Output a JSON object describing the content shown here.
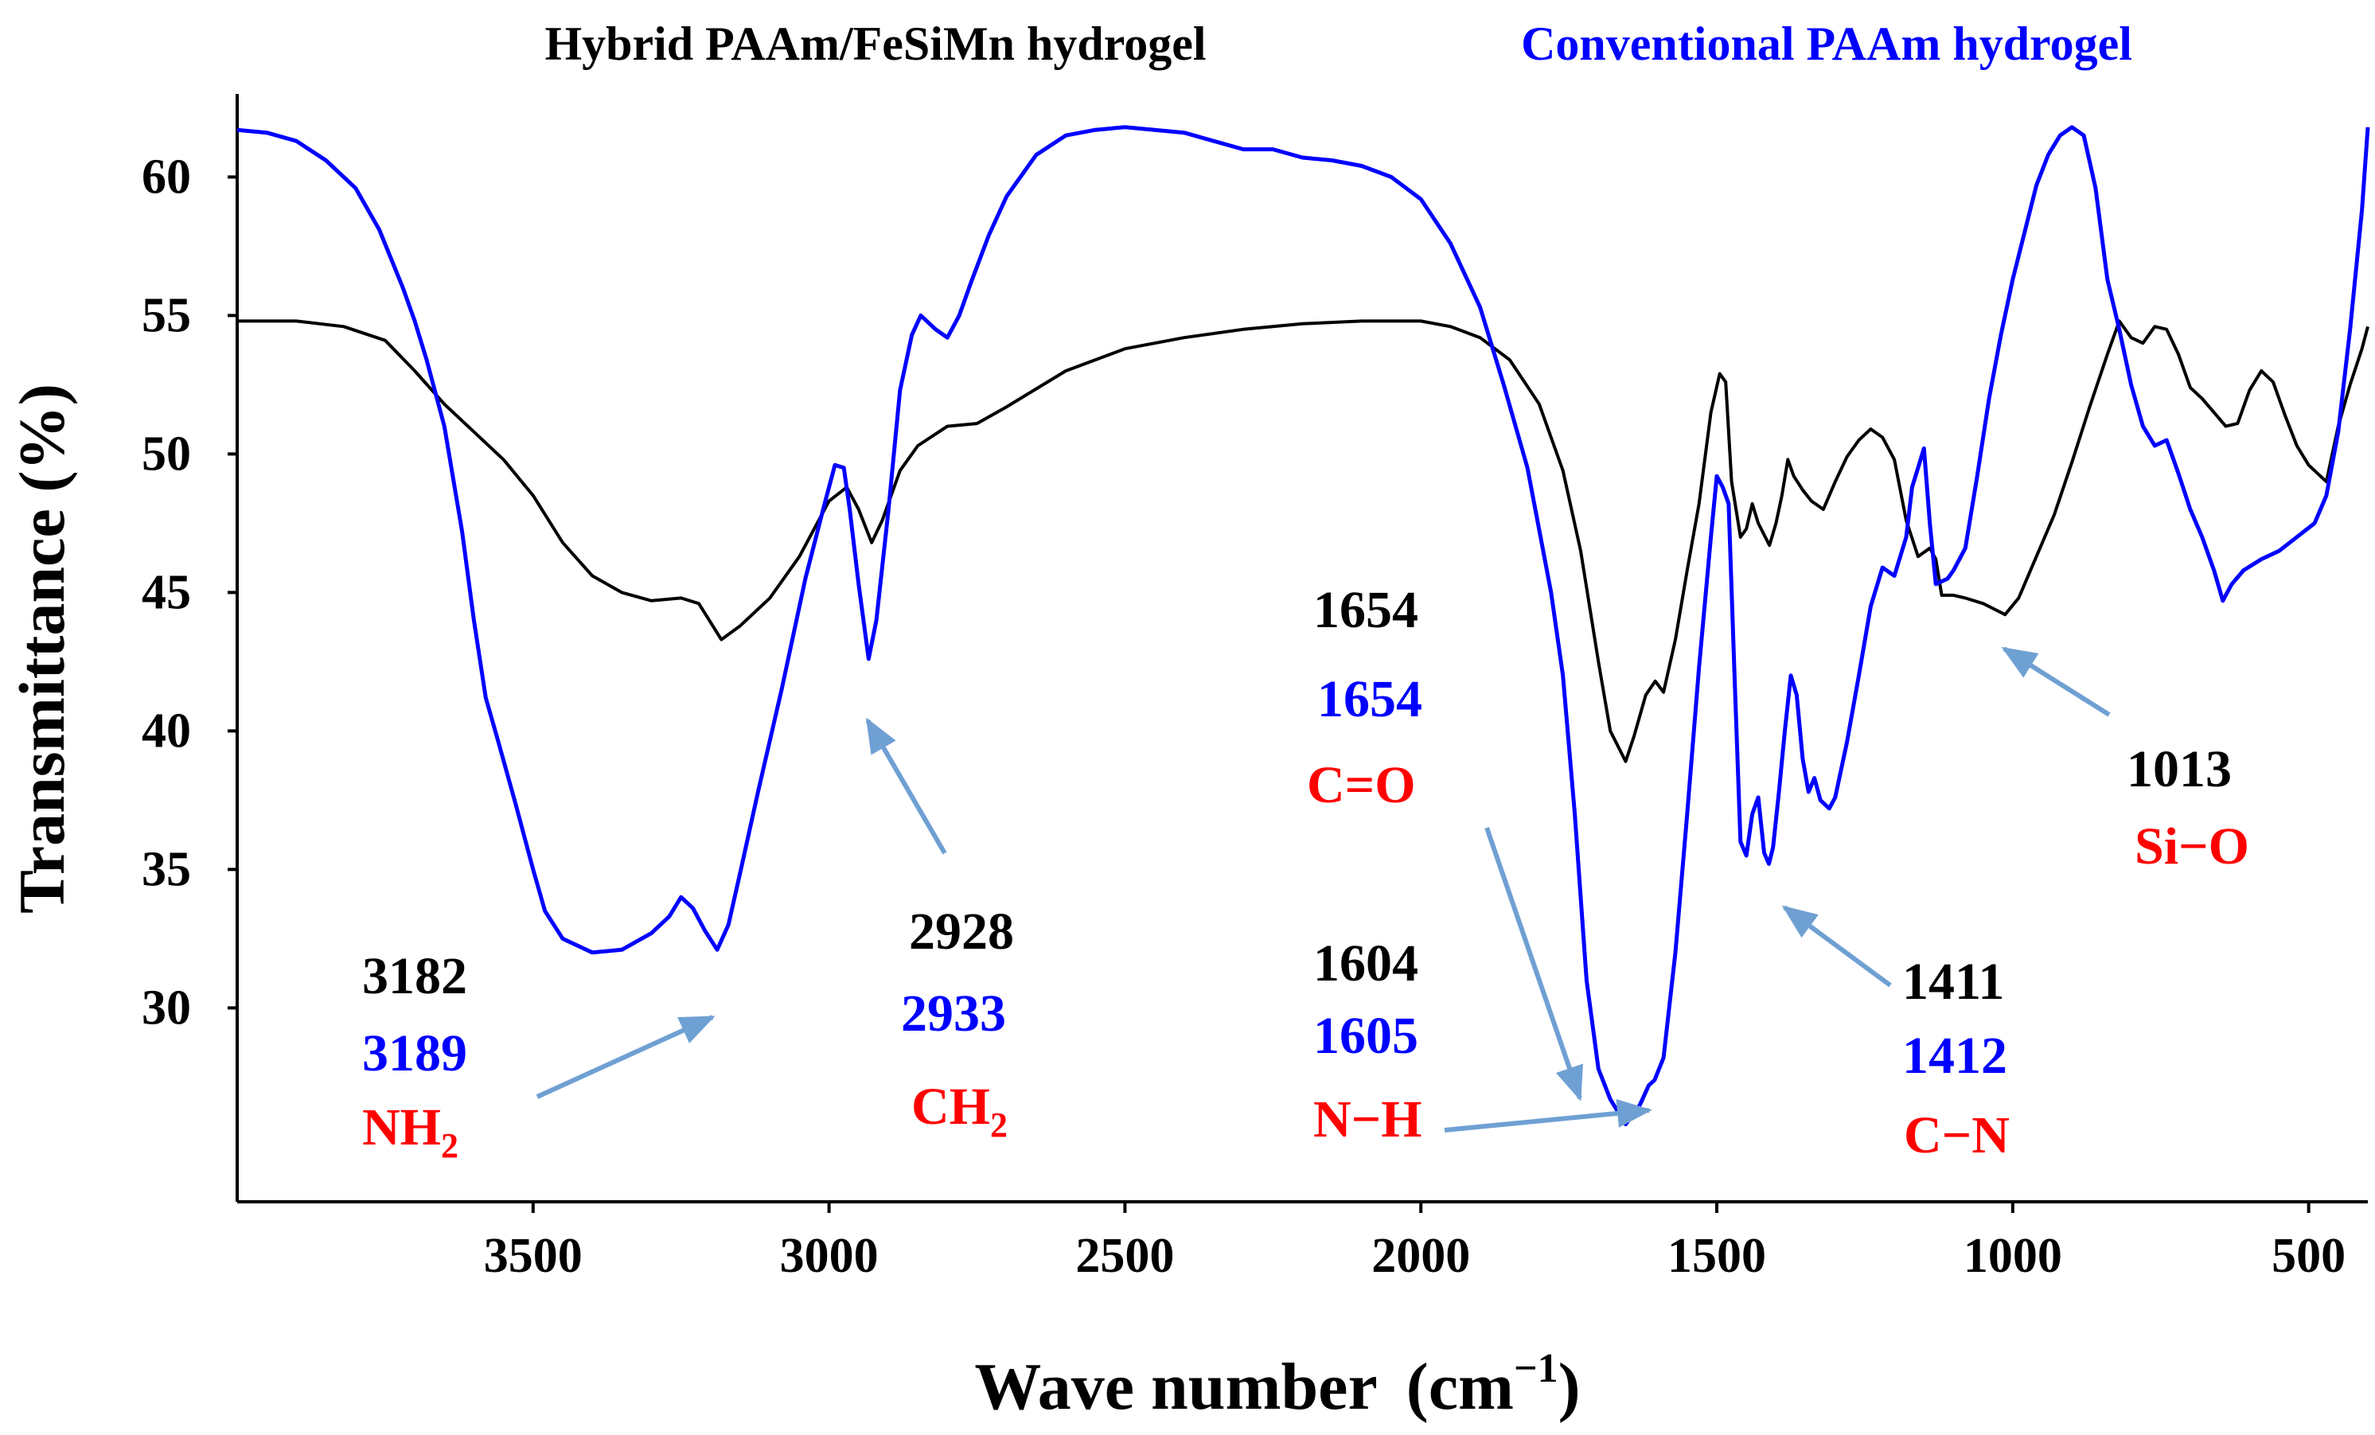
{
  "chart_data": {
    "type": "line",
    "title": "",
    "xlabel": "Wave number",
    "xlabel_unit": "(cm",
    "xlabel_unit_exp": "−1",
    "xlabel_unit_close": ")",
    "ylabel": "Transmittance  (%)",
    "x_reversed": true,
    "xlim": [
      4000,
      400
    ],
    "ylim": [
      23,
      63
    ],
    "x_ticks": [
      3500,
      3000,
      2500,
      2000,
      1500,
      1000,
      500
    ],
    "x_tick_labels": [
      "3500",
      "3000",
      "2500",
      "2000",
      "1500",
      "1000",
      "500"
    ],
    "y_ticks": [
      30,
      35,
      40,
      45,
      50,
      55,
      60
    ],
    "y_tick_labels": [
      "30",
      "35",
      "40",
      "45",
      "50",
      "55",
      "60"
    ],
    "series": [
      {
        "name": "Hybrid PAAm/FeSiMn hydrogel",
        "color": "#000000",
        "points": [
          [
            4000,
            54.8
          ],
          [
            3900,
            54.8
          ],
          [
            3820,
            54.6
          ],
          [
            3750,
            54.1
          ],
          [
            3700,
            53
          ],
          [
            3650,
            51.8
          ],
          [
            3600,
            50.8
          ],
          [
            3550,
            49.8
          ],
          [
            3500,
            48.5
          ],
          [
            3450,
            46.8
          ],
          [
            3400,
            45.6
          ],
          [
            3350,
            45
          ],
          [
            3300,
            44.7
          ],
          [
            3250,
            44.8
          ],
          [
            3220,
            44.6
          ],
          [
            3182,
            43.3
          ],
          [
            3150,
            43.8
          ],
          [
            3100,
            44.8
          ],
          [
            3050,
            46.3
          ],
          [
            3000,
            48.3
          ],
          [
            2970,
            48.8
          ],
          [
            2950,
            48
          ],
          [
            2928,
            46.8
          ],
          [
            2910,
            47.6
          ],
          [
            2880,
            49.4
          ],
          [
            2850,
            50.3
          ],
          [
            2800,
            51
          ],
          [
            2750,
            51.1
          ],
          [
            2700,
            51.7
          ],
          [
            2600,
            53
          ],
          [
            2500,
            53.8
          ],
          [
            2400,
            54.2
          ],
          [
            2300,
            54.5
          ],
          [
            2200,
            54.7
          ],
          [
            2100,
            54.8
          ],
          [
            2000,
            54.8
          ],
          [
            1950,
            54.6
          ],
          [
            1900,
            54.2
          ],
          [
            1850,
            53.4
          ],
          [
            1800,
            51.8
          ],
          [
            1760,
            49.4
          ],
          [
            1730,
            46.5
          ],
          [
            1700,
            42.5
          ],
          [
            1680,
            40
          ],
          [
            1654,
            38.9
          ],
          [
            1640,
            39.8
          ],
          [
            1620,
            41.3
          ],
          [
            1604,
            41.8
          ],
          [
            1590,
            41.4
          ],
          [
            1570,
            43.3
          ],
          [
            1550,
            45.8
          ],
          [
            1530,
            48.2
          ],
          [
            1510,
            51.5
          ],
          [
            1495,
            52.9
          ],
          [
            1485,
            52.6
          ],
          [
            1475,
            49
          ],
          [
            1460,
            47
          ],
          [
            1450,
            47.3
          ],
          [
            1440,
            48.2
          ],
          [
            1430,
            47.5
          ],
          [
            1411,
            46.7
          ],
          [
            1400,
            47.5
          ],
          [
            1390,
            48.5
          ],
          [
            1380,
            49.8
          ],
          [
            1370,
            49.2
          ],
          [
            1355,
            48.7
          ],
          [
            1340,
            48.3
          ],
          [
            1320,
            48
          ],
          [
            1300,
            49
          ],
          [
            1280,
            49.9
          ],
          [
            1260,
            50.5
          ],
          [
            1240,
            50.9
          ],
          [
            1220,
            50.6
          ],
          [
            1200,
            49.8
          ],
          [
            1180,
            47.6
          ],
          [
            1160,
            46.3
          ],
          [
            1140,
            46.6
          ],
          [
            1130,
            46.2
          ],
          [
            1120,
            44.9
          ],
          [
            1100,
            44.9
          ],
          [
            1080,
            44.8
          ],
          [
            1050,
            44.6
          ],
          [
            1013,
            44.2
          ],
          [
            990,
            44.8
          ],
          [
            960,
            46.3
          ],
          [
            930,
            47.8
          ],
          [
            900,
            49.7
          ],
          [
            870,
            51.7
          ],
          [
            840,
            53.6
          ],
          [
            820,
            54.8
          ],
          [
            800,
            54.2
          ],
          [
            780,
            54
          ],
          [
            760,
            54.6
          ],
          [
            740,
            54.5
          ],
          [
            720,
            53.6
          ],
          [
            700,
            52.4
          ],
          [
            680,
            52
          ],
          [
            660,
            51.5
          ],
          [
            640,
            51
          ],
          [
            620,
            51.1
          ],
          [
            600,
            52.3
          ],
          [
            580,
            53
          ],
          [
            560,
            52.6
          ],
          [
            540,
            51.4
          ],
          [
            520,
            50.3
          ],
          [
            500,
            49.6
          ],
          [
            470,
            49
          ],
          [
            450,
            51
          ],
          [
            430,
            52.5
          ],
          [
            410,
            53.8
          ],
          [
            400,
            54.6
          ]
        ]
      },
      {
        "name": "Conventional PAAm hydrogel",
        "color": "#0000ff",
        "points": [
          [
            4000,
            61.7
          ],
          [
            3950,
            61.6
          ],
          [
            3900,
            61.3
          ],
          [
            3850,
            60.6
          ],
          [
            3800,
            59.6
          ],
          [
            3760,
            58.1
          ],
          [
            3720,
            56
          ],
          [
            3700,
            54.8
          ],
          [
            3680,
            53.4
          ],
          [
            3650,
            51
          ],
          [
            3620,
            47.2
          ],
          [
            3600,
            44
          ],
          [
            3580,
            41.2
          ],
          [
            3560,
            39.7
          ],
          [
            3530,
            37.4
          ],
          [
            3500,
            35
          ],
          [
            3480,
            33.5
          ],
          [
            3450,
            32.5
          ],
          [
            3400,
            32
          ],
          [
            3350,
            32.1
          ],
          [
            3300,
            32.7
          ],
          [
            3270,
            33.3
          ],
          [
            3250,
            34
          ],
          [
            3230,
            33.6
          ],
          [
            3210,
            32.8
          ],
          [
            3189,
            32.1
          ],
          [
            3170,
            33
          ],
          [
            3150,
            34.9
          ],
          [
            3120,
            37.8
          ],
          [
            3080,
            41.5
          ],
          [
            3040,
            45.5
          ],
          [
            3010,
            48
          ],
          [
            2990,
            49.6
          ],
          [
            2975,
            49.5
          ],
          [
            2965,
            48
          ],
          [
            2950,
            45.3
          ],
          [
            2933,
            42.6
          ],
          [
            2920,
            44
          ],
          [
            2900,
            47.9
          ],
          [
            2880,
            52.3
          ],
          [
            2860,
            54.3
          ],
          [
            2845,
            55
          ],
          [
            2820,
            54.5
          ],
          [
            2800,
            54.2
          ],
          [
            2780,
            55
          ],
          [
            2760,
            56.2
          ],
          [
            2730,
            57.9
          ],
          [
            2700,
            59.3
          ],
          [
            2650,
            60.8
          ],
          [
            2600,
            61.5
          ],
          [
            2550,
            61.7
          ],
          [
            2500,
            61.8
          ],
          [
            2450,
            61.7
          ],
          [
            2400,
            61.6
          ],
          [
            2350,
            61.3
          ],
          [
            2300,
            61
          ],
          [
            2250,
            61
          ],
          [
            2200,
            60.7
          ],
          [
            2150,
            60.6
          ],
          [
            2100,
            60.4
          ],
          [
            2050,
            60
          ],
          [
            2000,
            59.2
          ],
          [
            1950,
            57.6
          ],
          [
            1900,
            55.3
          ],
          [
            1860,
            52.5
          ],
          [
            1820,
            49.5
          ],
          [
            1780,
            45
          ],
          [
            1760,
            42
          ],
          [
            1740,
            37
          ],
          [
            1720,
            31
          ],
          [
            1700,
            27.8
          ],
          [
            1680,
            26.7
          ],
          [
            1654,
            25.8
          ],
          [
            1630,
            26.5
          ],
          [
            1615,
            27.2
          ],
          [
            1605,
            27.4
          ],
          [
            1590,
            28.2
          ],
          [
            1570,
            32
          ],
          [
            1550,
            37
          ],
          [
            1530,
            42.3
          ],
          [
            1510,
            47
          ],
          [
            1500,
            49.2
          ],
          [
            1490,
            48.8
          ],
          [
            1480,
            48.2
          ],
          [
            1470,
            42
          ],
          [
            1460,
            36
          ],
          [
            1450,
            35.5
          ],
          [
            1440,
            37
          ],
          [
            1430,
            37.6
          ],
          [
            1420,
            35.6
          ],
          [
            1412,
            35.2
          ],
          [
            1405,
            35.8
          ],
          [
            1395,
            37.8
          ],
          [
            1385,
            40
          ],
          [
            1375,
            42
          ],
          [
            1365,
            41.3
          ],
          [
            1355,
            39
          ],
          [
            1345,
            37.8
          ],
          [
            1335,
            38.3
          ],
          [
            1325,
            37.5
          ],
          [
            1310,
            37.2
          ],
          [
            1300,
            37.6
          ],
          [
            1280,
            39.6
          ],
          [
            1260,
            42
          ],
          [
            1240,
            44.5
          ],
          [
            1220,
            45.9
          ],
          [
            1200,
            45.6
          ],
          [
            1180,
            47
          ],
          [
            1170,
            48.8
          ],
          [
            1160,
            49.5
          ],
          [
            1150,
            50.2
          ],
          [
            1140,
            47.5
          ],
          [
            1130,
            45.3
          ],
          [
            1110,
            45.5
          ],
          [
            1100,
            45.8
          ],
          [
            1080,
            46.6
          ],
          [
            1060,
            49.2
          ],
          [
            1040,
            52
          ],
          [
            1020,
            54.3
          ],
          [
            1000,
            56.3
          ],
          [
            980,
            58
          ],
          [
            960,
            59.7
          ],
          [
            940,
            60.8
          ],
          [
            920,
            61.5
          ],
          [
            900,
            61.8
          ],
          [
            880,
            61.5
          ],
          [
            860,
            59.6
          ],
          [
            840,
            56.3
          ],
          [
            820,
            54.5
          ],
          [
            800,
            52.5
          ],
          [
            780,
            51
          ],
          [
            760,
            50.3
          ],
          [
            740,
            50.5
          ],
          [
            720,
            49.3
          ],
          [
            700,
            48
          ],
          [
            680,
            47
          ],
          [
            660,
            45.8
          ],
          [
            645,
            44.7
          ],
          [
            630,
            45.3
          ],
          [
            610,
            45.8
          ],
          [
            580,
            46.2
          ],
          [
            550,
            46.5
          ],
          [
            520,
            47
          ],
          [
            490,
            47.5
          ],
          [
            470,
            48.5
          ],
          [
            450,
            50.8
          ],
          [
            430,
            54.5
          ],
          [
            410,
            58.8
          ],
          [
            400,
            61.8
          ]
        ]
      }
    ],
    "legend": [
      {
        "label": "Hybrid PAAm/FeSiMn hydrogel",
        "color": "#000000"
      },
      {
        "label": "Conventional PAAm hydrogel",
        "color": "#0000ff"
      }
    ],
    "arrow_color": "#6fa0d3",
    "annotations": {
      "nh2": {
        "black": "3182",
        "blue": "3189",
        "group": "NH",
        "group_sub": "2"
      },
      "ch2": {
        "black": "2928",
        "blue": "2933",
        "group": "CH",
        "group_sub": "2"
      },
      "co": {
        "black": "1654",
        "blue": "1654",
        "group": "C=O"
      },
      "nh": {
        "black": "1604",
        "blue": "1605",
        "group": "N−H"
      },
      "cn": {
        "black": "1411",
        "blue": "1412",
        "group": "C−N"
      },
      "sio": {
        "black": "1013",
        "group": "Si−O"
      }
    }
  }
}
